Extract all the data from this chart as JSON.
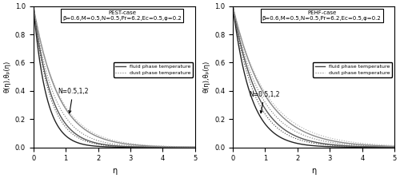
{
  "pest_title_line1": "PEST-case",
  "pest_title_line2": "β=0.6,M=0.5,N=0.5,Pr=6.2,Ec=0.5,φ=0.2",
  "pehf_title_line1": "PEHF-case",
  "pehf_title_line2": "β=0.6,M=0.5,N=0.5,Pr=6.2,Ec=0.5,φ=0.2",
  "xlabel": "η",
  "ylabel": "θ(η),θₚ(η)",
  "xlim": [
    0,
    5
  ],
  "ylim": [
    0,
    1.0
  ],
  "N_label": "N=0.5,1,2",
  "legend_fluid": "fluid phase temperature",
  "legend_dust": "dust phase temperature",
  "fluid_color": "#555555",
  "dust_color": "#888888",
  "N_values": [
    0.5,
    1.0,
    2.0
  ],
  "pest_fluid_decay": [
    2.5,
    1.8,
    1.3
  ],
  "pest_dust_decay": [
    1.8,
    1.4,
    1.1
  ],
  "pehf_fluid_decay": [
    1.8,
    1.3,
    1.0
  ],
  "pehf_dust_decay": [
    1.3,
    1.0,
    0.8
  ]
}
